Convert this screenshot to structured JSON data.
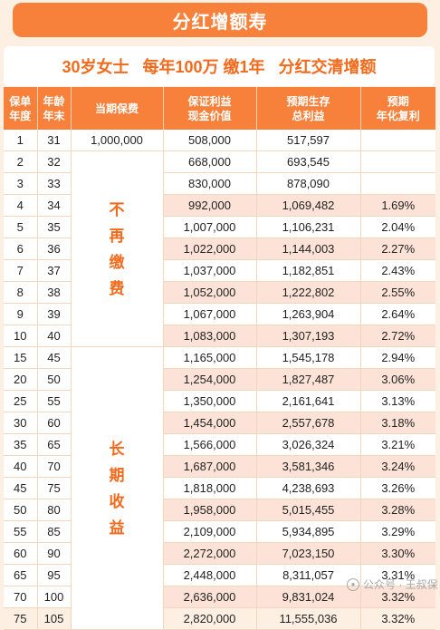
{
  "title": "分红增额寿",
  "subtitle": "30岁女士   每年100万 缴1年   分红交清增额",
  "headers": {
    "year": "保单\n年度",
    "age": "年龄\n年末",
    "premium": "当期保费",
    "cash_value": "保证利益\n现金价值",
    "survival_total": "预期生存\n总利益",
    "annual_rate": "预期\n年化复利"
  },
  "premium_value": "1,000,000",
  "no_more_payment": [
    "不",
    "再",
    "缴",
    "费"
  ],
  "long_term_benefit": [
    "长",
    "期",
    "收",
    "益"
  ],
  "rows": [
    {
      "year": "1",
      "age": "31",
      "cash": "508,000",
      "total": "517,597",
      "rate": ""
    },
    {
      "year": "2",
      "age": "32",
      "cash": "668,000",
      "total": "693,545",
      "rate": ""
    },
    {
      "year": "3",
      "age": "33",
      "cash": "830,000",
      "total": "878,090",
      "rate": ""
    },
    {
      "year": "4",
      "age": "34",
      "cash": "992,000",
      "total": "1,069,482",
      "rate": "1.69%"
    },
    {
      "year": "5",
      "age": "35",
      "cash": "1,007,000",
      "total": "1,106,231",
      "rate": "2.04%"
    },
    {
      "year": "6",
      "age": "36",
      "cash": "1,022,000",
      "total": "1,144,003",
      "rate": "2.27%"
    },
    {
      "year": "7",
      "age": "37",
      "cash": "1,037,000",
      "total": "1,182,851",
      "rate": "2.43%"
    },
    {
      "year": "8",
      "age": "38",
      "cash": "1,052,000",
      "total": "1,222,802",
      "rate": "2.55%"
    },
    {
      "year": "9",
      "age": "39",
      "cash": "1,067,000",
      "total": "1,263,904",
      "rate": "2.64%"
    },
    {
      "year": "10",
      "age": "40",
      "cash": "1,083,000",
      "total": "1,307,193",
      "rate": "2.72%"
    },
    {
      "year": "15",
      "age": "45",
      "cash": "1,165,000",
      "total": "1,545,178",
      "rate": "2.94%"
    },
    {
      "year": "20",
      "age": "50",
      "cash": "1,254,000",
      "total": "1,827,487",
      "rate": "3.06%"
    },
    {
      "year": "25",
      "age": "55",
      "cash": "1,350,000",
      "total": "2,161,641",
      "rate": "3.13%"
    },
    {
      "year": "30",
      "age": "60",
      "cash": "1,454,000",
      "total": "2,557,678",
      "rate": "3.18%"
    },
    {
      "year": "35",
      "age": "65",
      "cash": "1,566,000",
      "total": "3,026,324",
      "rate": "3.21%"
    },
    {
      "year": "40",
      "age": "70",
      "cash": "1,687,000",
      "total": "3,581,346",
      "rate": "3.24%"
    },
    {
      "year": "45",
      "age": "75",
      "cash": "1,818,000",
      "total": "4,238,693",
      "rate": "3.26%"
    },
    {
      "year": "50",
      "age": "80",
      "cash": "1,958,000",
      "total": "5,015,455",
      "rate": "3.28%"
    },
    {
      "year": "55",
      "age": "85",
      "cash": "2,109,000",
      "total": "5,934,895",
      "rate": "3.29%"
    },
    {
      "year": "60",
      "age": "90",
      "cash": "2,272,000",
      "total": "7,023,150",
      "rate": "3.30%"
    },
    {
      "year": "65",
      "age": "95",
      "cash": "2,448,000",
      "total": "8,311,057",
      "rate": "3.31%"
    },
    {
      "year": "70",
      "age": "100",
      "cash": "2,636,000",
      "total": "9,831,024",
      "rate": "3.32%"
    },
    {
      "year": "75",
      "age": "105",
      "cash": "2,820,000",
      "total": "11,555,036",
      "rate": "3.32%"
    }
  ],
  "watermark_text": "公众号 · 王叔保",
  "colors": {
    "accent": "#f7813a",
    "shade": "#fde3d7",
    "text_orange": "#f26a1b"
  }
}
